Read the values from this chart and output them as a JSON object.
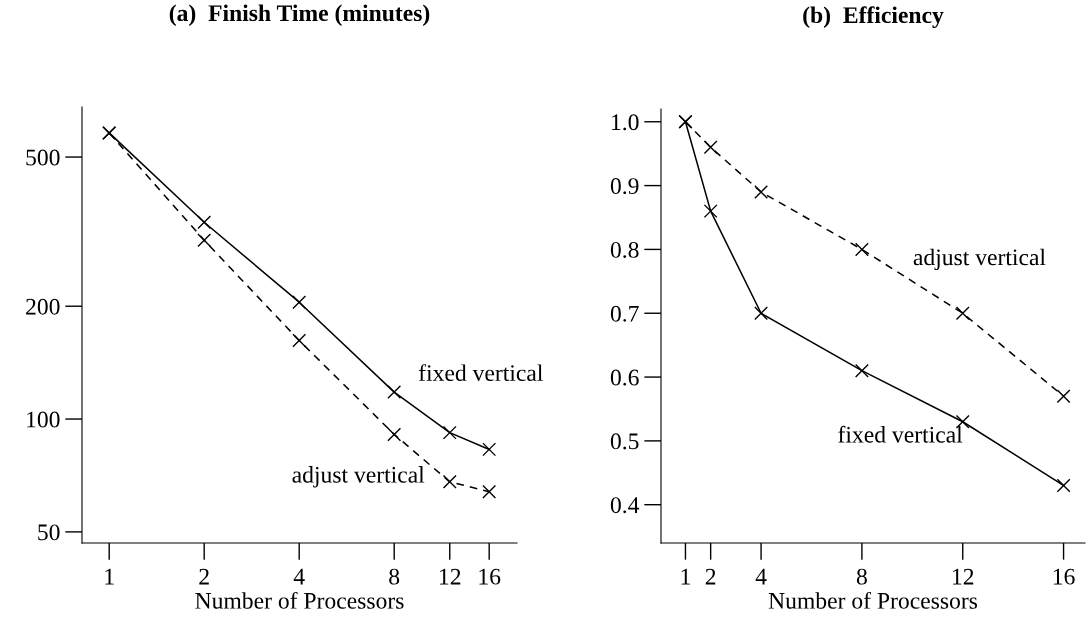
{
  "chart_data": [
    {
      "type": "line",
      "title": "(a)  Finish Time (minutes)",
      "xlabel": "Number of Processors",
      "x": [
        1,
        2,
        4,
        8,
        12,
        16
      ],
      "log": "xy",
      "marker": "cross",
      "grid": false,
      "series": [
        {
          "name": "fixed vertical",
          "color": "#000000",
          "line_style": "solid",
          "values": [
            580,
            335,
            205,
            118,
            92,
            83
          ]
        },
        {
          "name": "adjust vertical",
          "color": "#000000",
          "line_style": "dashed",
          "values": [
            580,
            300,
            162,
            91,
            68,
            64
          ]
        }
      ],
      "xlim": [
        0.82,
        19.6
      ],
      "xticks": [
        1,
        2,
        4,
        8,
        12,
        16
      ],
      "ylim": [
        46.7,
        680
      ],
      "yticks": [
        50,
        100,
        200,
        500
      ]
    },
    {
      "type": "line",
      "title": "(b)  Efficiency",
      "xlabel": "Number of Processors",
      "x": [
        1,
        2,
        4,
        8,
        12,
        16
      ],
      "marker": "cross",
      "grid": false,
      "series": [
        {
          "name": "fixed vertical",
          "color": "#000000",
          "line_style": "solid",
          "values": [
            1.0,
            0.86,
            0.7,
            0.61,
            0.53,
            0.43
          ]
        },
        {
          "name": "adjust vertical",
          "color": "#000000",
          "line_style": "dashed",
          "values": [
            1.0,
            0.96,
            0.89,
            0.8,
            0.7,
            0.57
          ]
        }
      ],
      "xlim": [
        0.03,
        16.85
      ],
      "xticks": [
        1,
        2,
        4,
        8,
        12,
        16
      ],
      "ylim": [
        0.34,
        1.02
      ],
      "yticks": [
        {
          "value": 0.4,
          "label": "0.4"
        },
        {
          "value": 0.5,
          "label": "0.5"
        },
        {
          "value": 0.6,
          "label": "0.6"
        },
        {
          "value": 0.7,
          "label": "0.7"
        },
        {
          "value": 0.8,
          "label": "0.8"
        },
        {
          "value": 0.9,
          "label": "0.9"
        },
        {
          "value": 1.0,
          "label": "1.0"
        }
      ]
    }
  ]
}
